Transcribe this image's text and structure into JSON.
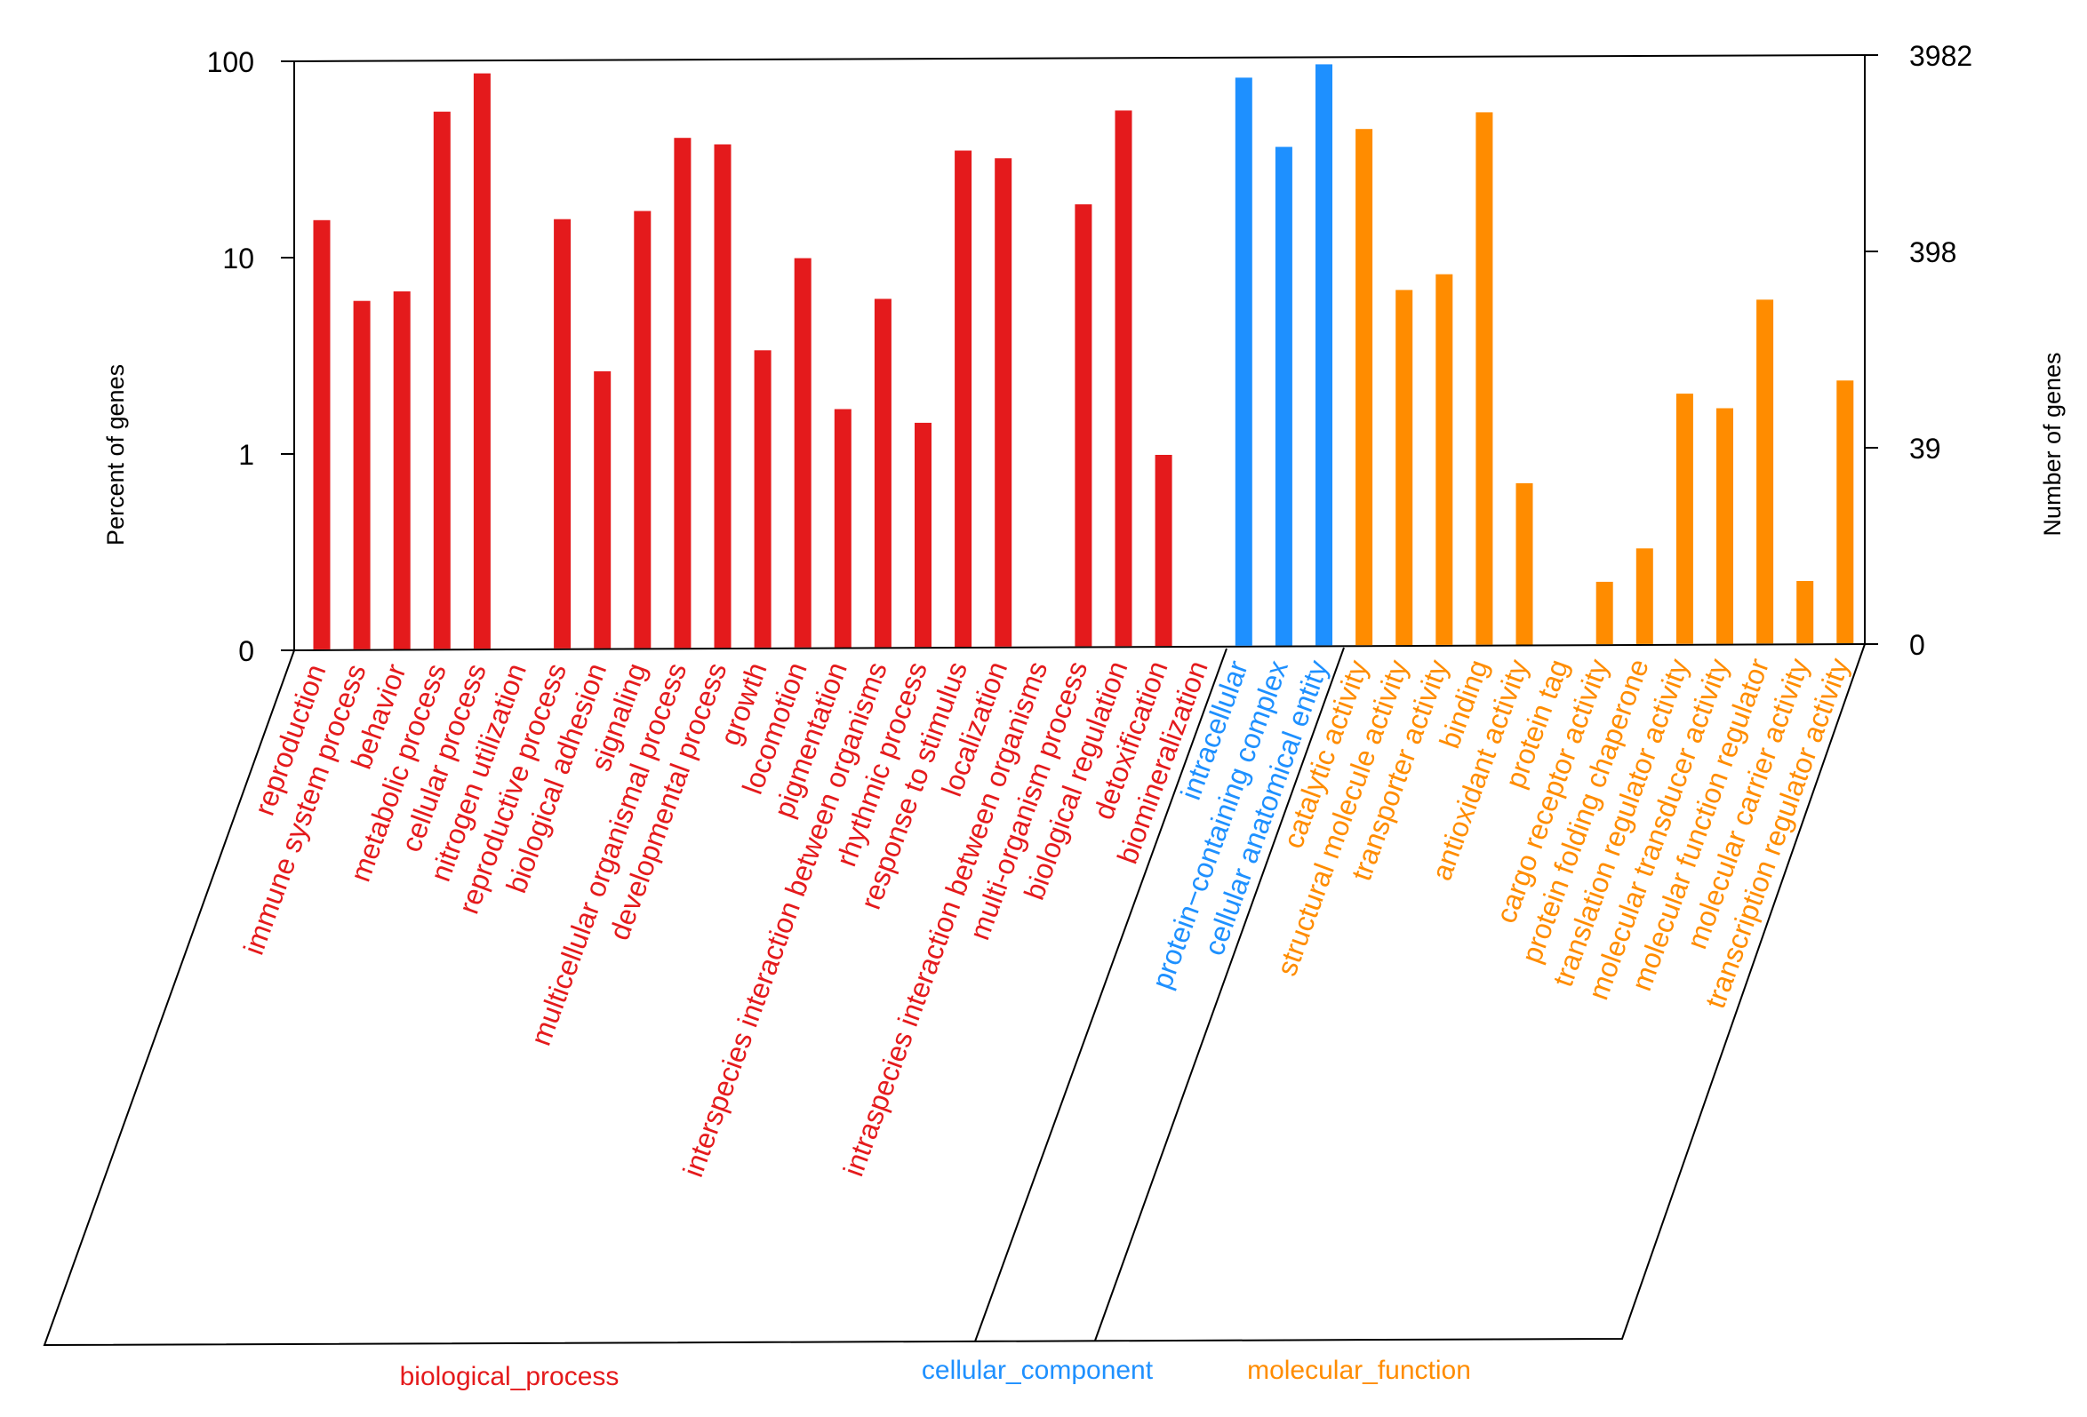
{
  "chart_data": {
    "type": "bar",
    "title": "",
    "ylabel_left": "Percent of genes",
    "ylabel_right": "Number of genes",
    "yscale": "log",
    "left_ticks": [
      "100",
      "10",
      "1",
      "0"
    ],
    "right_ticks": [
      "3982",
      "398",
      "39",
      "0"
    ],
    "groups": [
      {
        "name": "biological_process",
        "color": "#e41a1c"
      },
      {
        "name": "cellular_component",
        "color": "#1e90ff"
      },
      {
        "name": "molecular_function",
        "color": "#ff8c00"
      }
    ],
    "categories": [
      {
        "label": "reproduction",
        "group": 0,
        "value": 15.5
      },
      {
        "label": "immune system process",
        "group": 0,
        "value": 6.0
      },
      {
        "label": "behavior",
        "group": 0,
        "value": 6.7
      },
      {
        "label": "metabolic process",
        "group": 0,
        "value": 55
      },
      {
        "label": "cellular process",
        "group": 0,
        "value": 86
      },
      {
        "label": "nitrogen utilization",
        "group": 0,
        "value": null
      },
      {
        "label": "reproductive process",
        "group": 0,
        "value": 15.5
      },
      {
        "label": "biological adhesion",
        "group": 0,
        "value": 2.6
      },
      {
        "label": "signaling",
        "group": 0,
        "value": 17
      },
      {
        "label": "multicellular organismal process",
        "group": 0,
        "value": 40
      },
      {
        "label": "developmental process",
        "group": 0,
        "value": 37
      },
      {
        "label": "growth",
        "group": 0,
        "value": 3.3
      },
      {
        "label": "locomotion",
        "group": 0,
        "value": 9.7
      },
      {
        "label": "pigmentation",
        "group": 0,
        "value": 1.65
      },
      {
        "label": "interspecies interaction between organisms",
        "group": 0,
        "value": 6.0
      },
      {
        "label": "rhythmic process",
        "group": 0,
        "value": 1.4
      },
      {
        "label": "response to stimulus",
        "group": 0,
        "value": 34
      },
      {
        "label": "localization",
        "group": 0,
        "value": 31
      },
      {
        "label": "intraspecies interaction between organisms",
        "group": 0,
        "value": null
      },
      {
        "label": "multi-organism process",
        "group": 0,
        "value": 18
      },
      {
        "label": "biological regulation",
        "group": 0,
        "value": 54
      },
      {
        "label": "detoxification",
        "group": 0,
        "value": 0.95
      },
      {
        "label": "biomineralization",
        "group": 0,
        "value": null
      },
      {
        "label": "intracellular",
        "group": 1,
        "value": 79
      },
      {
        "label": "protein−containing complex",
        "group": 1,
        "value": 35
      },
      {
        "label": "cellular anatomical entity",
        "group": 1,
        "value": 92
      },
      {
        "label": "catalytic activity",
        "group": 2,
        "value": 43
      },
      {
        "label": "structural molecule activity",
        "group": 2,
        "value": 6.5
      },
      {
        "label": "transporter activity",
        "group": 2,
        "value": 7.8
      },
      {
        "label": "binding",
        "group": 2,
        "value": 52
      },
      {
        "label": "antioxidant activity",
        "group": 2,
        "value": 0.67
      },
      {
        "label": "protein tag",
        "group": 2,
        "value": null
      },
      {
        "label": "cargo receptor activity",
        "group": 2,
        "value": 0.21
      },
      {
        "label": "protein folding chaperone",
        "group": 2,
        "value": 0.31
      },
      {
        "label": "translation regulator activity",
        "group": 2,
        "value": 1.9
      },
      {
        "label": "molecular transducer activity",
        "group": 2,
        "value": 1.6
      },
      {
        "label": "molecular function regulator",
        "group": 2,
        "value": 5.7
      },
      {
        "label": "molecular carrier activity",
        "group": 2,
        "value": 0.21
      },
      {
        "label": "transcription regulator activity",
        "group": 2,
        "value": 2.2
      }
    ]
  }
}
